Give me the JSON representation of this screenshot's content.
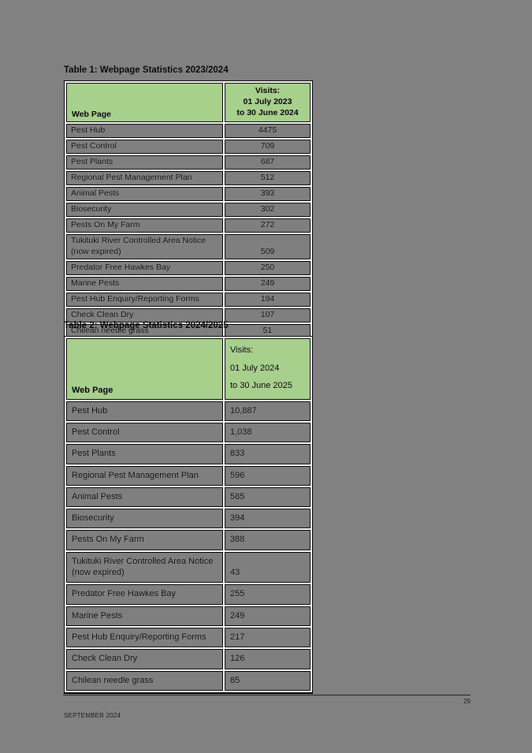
{
  "document": {
    "footer": {
      "date": "SEPTEMBER 2024",
      "page_number": "29"
    }
  },
  "colors": {
    "page_background": "#818181",
    "table_header_green": "#a8d08d",
    "cell_gray": "#7f7f7f",
    "table_border": "#000000",
    "grid_gap_white": "#ffffff"
  },
  "tables": [
    {
      "title": "Table 1: Webpage Statistics 2023/2024",
      "columns": {
        "web_page": "Web Page",
        "visits": "Visits:\n01 July 2023\nto 30 June 2024"
      },
      "rows": [
        {
          "page": "Pest Hub",
          "visits": "4475"
        },
        {
          "page": "Pest Control",
          "visits": "709"
        },
        {
          "page": "Pest Plants",
          "visits": "687"
        },
        {
          "page": "Regional Pest Management Plan",
          "visits": "512"
        },
        {
          "page": "Animal Pests",
          "visits": "393"
        },
        {
          "page": "Biosecurity",
          "visits": "302"
        },
        {
          "page": "Pests On My Farm",
          "visits": "272"
        },
        {
          "page": "Tukituki River Controlled Area Notice (now expired)",
          "visits": "509"
        },
        {
          "page": "Predator Free Hawkes Bay",
          "visits": "250"
        },
        {
          "page": "Marine Pests",
          "visits": "249"
        },
        {
          "page": "Pest Hub Enquiry/Reporting Forms",
          "visits": "194"
        },
        {
          "page": "Check Clean Dry",
          "visits": "107"
        },
        {
          "page": "Chilean needle grass",
          "visits": "51"
        }
      ]
    },
    {
      "title": "Table 2: Webpage Statistics 2024/2025",
      "columns": {
        "web_page": "Web Page",
        "visits": "Visits:\n01 July 2024\nto 30 June 2025"
      },
      "rows": [
        {
          "page": "Pest Hub",
          "visits": "10,887"
        },
        {
          "page": "Pest Control",
          "visits": "1,038"
        },
        {
          "page": "Pest Plants",
          "visits": "833"
        },
        {
          "page": "Regional Pest Management Plan",
          "visits": "596"
        },
        {
          "page": "Animal Pests",
          "visits": "585"
        },
        {
          "page": "Biosecurity",
          "visits": "394"
        },
        {
          "page": "Pests On My Farm",
          "visits": "388"
        },
        {
          "page": "Tukituki River Controlled Area Notice (now expired)",
          "visits": "43"
        },
        {
          "page": "Predator Free Hawkes Bay",
          "visits": "255"
        },
        {
          "page": "Marine Pests",
          "visits": "249"
        },
        {
          "page": "Pest Hub Enquiry/Reporting Forms",
          "visits": "217"
        },
        {
          "page": "Check Clean Dry",
          "visits": "126"
        },
        {
          "page": "Chilean needle grass",
          "visits": "85"
        }
      ]
    }
  ]
}
